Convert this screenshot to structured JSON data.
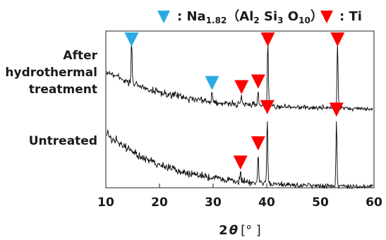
{
  "chart_data": {
    "type": "line",
    "title": "",
    "xlabel": "2θ [°]",
    "xlabel_parts": {
      "prefix": "2",
      "theta": "θ",
      "unit": "[°  ]"
    },
    "ylabel": "",
    "xlim": [
      10,
      60
    ],
    "x_ticks": [
      10,
      20,
      30,
      40,
      50,
      60
    ],
    "x_tick_labels": [
      "10",
      "20",
      "30",
      "40",
      "50",
      "60"
    ],
    "grid": false,
    "legend": {
      "placement": "top",
      "entries": [
        {
          "marker": "down-triangle",
          "color": "#29abe2",
          "parts": [
            ": Na",
            "1.82",
            "（Al",
            "2",
            " Si",
            "3",
            " O",
            "10",
            "）"
          ]
        },
        {
          "marker": "down-triangle",
          "color": "#ff0000",
          "parts": [
            ":  Ti"
          ]
        }
      ]
    },
    "series": [
      {
        "name": "After hydrothermal treatment",
        "name_lines": [
          "After",
          "hydrothermal",
          "treatment"
        ],
        "peaks": [
          {
            "x": 14.8,
            "height": 0.64,
            "phase": "Na"
          },
          {
            "x": 29.8,
            "height": 0.14,
            "phase": "Na"
          },
          {
            "x": 35.3,
            "height": 0.12,
            "phase": "Ti"
          },
          {
            "x": 38.4,
            "height": 0.22,
            "phase": "Ti"
          },
          {
            "x": 40.2,
            "height": 1.0,
            "phase": "Ti"
          },
          {
            "x": 53.2,
            "height": 1.02,
            "phase": "Ti"
          }
        ]
      },
      {
        "name": "Untreated",
        "name_lines": [
          "Untreated"
        ],
        "peaks": [
          {
            "x": 35.1,
            "height": 0.14,
            "phase": "Ti"
          },
          {
            "x": 38.4,
            "height": 0.45,
            "phase": "Ti"
          },
          {
            "x": 40.1,
            "height": 1.0,
            "phase": "Ti"
          },
          {
            "x": 53.0,
            "height": 1.0,
            "phase": "Ti"
          }
        ]
      }
    ],
    "markers": [
      {
        "series": 0,
        "x": 14.8,
        "phase": "Na"
      },
      {
        "series": 0,
        "x": 29.8,
        "phase": "Na"
      },
      {
        "series": 0,
        "x": 35.3,
        "phase": "Ti"
      },
      {
        "series": 0,
        "x": 38.4,
        "phase": "Ti"
      },
      {
        "series": 0,
        "x": 40.2,
        "phase": "Ti"
      },
      {
        "series": 0,
        "x": 53.2,
        "phase": "Ti"
      },
      {
        "series": 1,
        "x": 35.1,
        "phase": "Ti"
      },
      {
        "series": 1,
        "x": 38.4,
        "phase": "Ti"
      },
      {
        "series": 1,
        "x": 40.1,
        "phase": "Ti"
      },
      {
        "series": 1,
        "x": 53.0,
        "phase": "Ti"
      }
    ],
    "colors": {
      "Na": "#29abe2",
      "Ti": "#ff0000",
      "trace": "#000000"
    }
  }
}
